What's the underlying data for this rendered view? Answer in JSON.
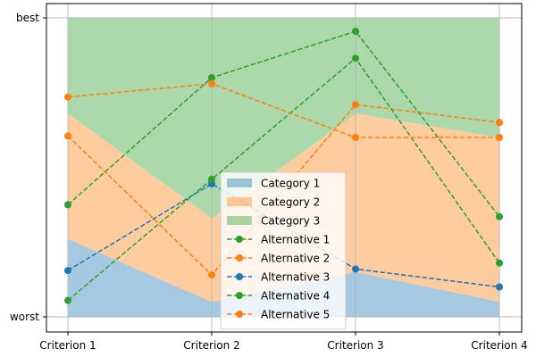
{
  "chart_data": {
    "type": "line",
    "categories": [
      "Criterion 1",
      "Criterion 2",
      "Criterion 3",
      "Criterion 4"
    ],
    "ylim": [
      0,
      1
    ],
    "yticks": [
      {
        "value": 0,
        "label": "worst"
      },
      {
        "value": 1,
        "label": "best"
      }
    ],
    "grid": true,
    "legend": "center",
    "bands": [
      {
        "name": "Category 1",
        "color": "#1f77b4",
        "lower": [
          0,
          0,
          0,
          0
        ],
        "upper": [
          0.26,
          0.05,
          0.15,
          0.05
        ]
      },
      {
        "name": "Category 2",
        "color": "#ff7f0e",
        "lower": [
          0.26,
          0.05,
          0.15,
          0.05
        ],
        "upper": [
          0.68,
          0.33,
          0.68,
          0.6
        ]
      },
      {
        "name": "Category 3",
        "color": "#2ca02c",
        "lower": [
          0.68,
          0.33,
          0.68,
          0.6
        ],
        "upper": [
          1,
          1,
          1,
          1
        ]
      }
    ],
    "series": [
      {
        "name": "Alternative 1",
        "color": "#2ca02c",
        "values": [
          0.375,
          0.8,
          0.955,
          0.335
        ]
      },
      {
        "name": "Alternative 2",
        "color": "#ff7f0e",
        "values": [
          0.605,
          0.14,
          0.71,
          0.65
        ]
      },
      {
        "name": "Alternative 3",
        "color": "#1f77b4",
        "values": [
          0.155,
          0.445,
          0.16,
          0.1
        ]
      },
      {
        "name": "Alternative 4",
        "color": "#2ca02c",
        "values": [
          0.055,
          0.46,
          0.865,
          0.18
        ]
      },
      {
        "name": "Alternative 5",
        "color": "#ff7f0e",
        "values": [
          0.735,
          0.78,
          0.6,
          0.6
        ]
      }
    ]
  }
}
